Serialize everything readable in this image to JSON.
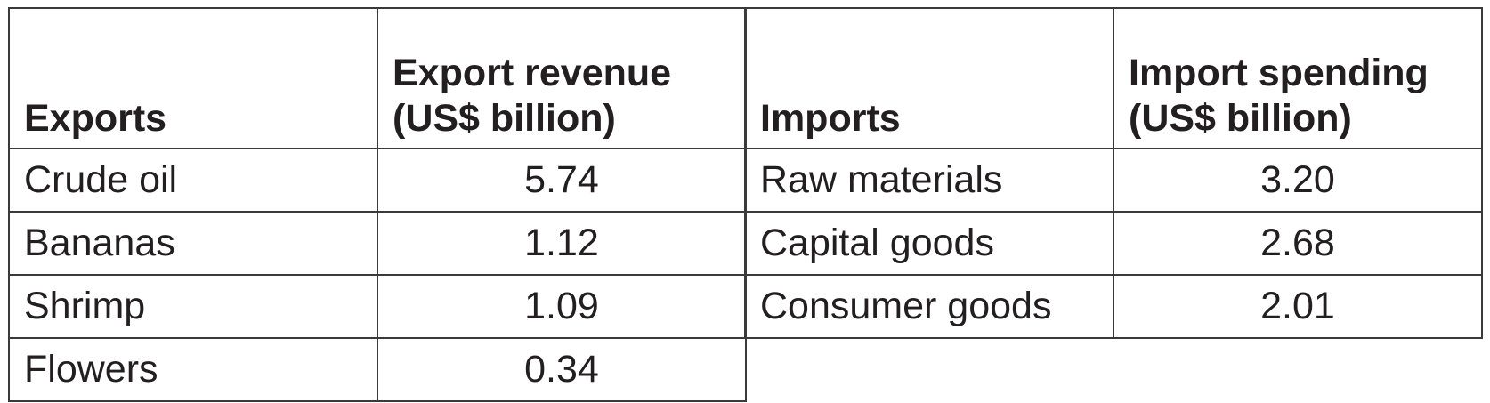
{
  "exports": {
    "header_name": "Exports",
    "header_value_line1": "Export revenue",
    "header_value_line2": "(US$ billion)",
    "rows": [
      {
        "name": "Crude oil",
        "value": "5.74"
      },
      {
        "name": "Bananas",
        "value": "1.12"
      },
      {
        "name": "Shrimp",
        "value": "1.09"
      },
      {
        "name": "Flowers",
        "value": "0.34"
      }
    ]
  },
  "imports": {
    "header_name": "Imports",
    "header_value_line1": "Import spending",
    "header_value_line2": "(US$ billion)",
    "rows": [
      {
        "name": "Raw materials",
        "value": "3.20"
      },
      {
        "name": "Capital goods",
        "value": "2.68"
      },
      {
        "name": "Consumer goods",
        "value": "2.01"
      }
    ]
  }
}
